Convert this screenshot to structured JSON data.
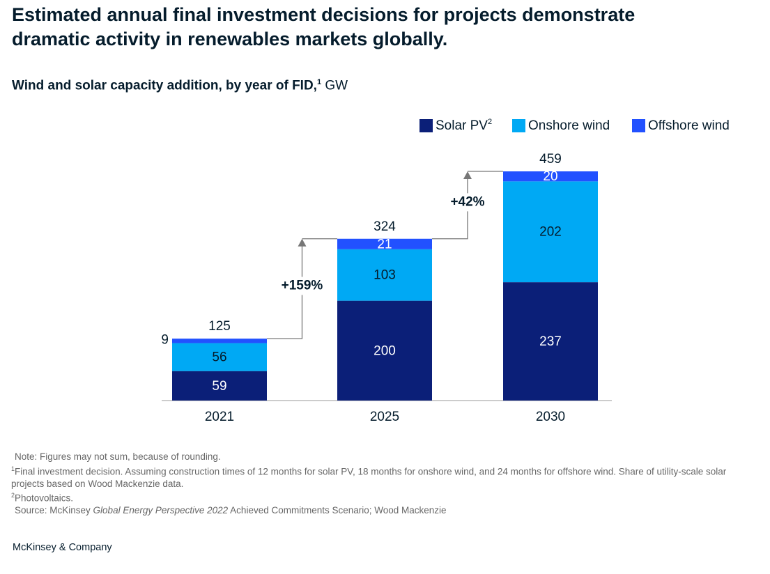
{
  "chart_data": {
    "type": "stacked_bar",
    "title": "Estimated annual final investment decisions for projects demonstrate dramatic activity in renewables markets globally.",
    "subtitle": "Wind and solar capacity addition, by year of FID,",
    "subtitle_footnote": "1",
    "unit": "GW",
    "categories": [
      "2021",
      "2025",
      "2030"
    ],
    "series": [
      {
        "name": "Solar PV",
        "footnote": "2",
        "color": "#0b1f78",
        "values": [
          59,
          200,
          237
        ]
      },
      {
        "name": "Onshore wind",
        "color": "#00a9f4",
        "values": [
          56,
          103,
          202
        ]
      },
      {
        "name": "Offshore wind",
        "color": "#2251ff",
        "values": [
          9,
          21,
          20
        ]
      }
    ],
    "totals": [
      125,
      324,
      459
    ],
    "growth_labels": [
      "+159%",
      "+42%"
    ],
    "notes": [
      {
        "text": "Note: Figures may not sum, because of rounding."
      },
      {
        "marker": "1",
        "text": "Final investment decision. Assuming construction times of 12 months for solar PV, 18 months for onshore wind, and 24 months for offshore wind. Share of utility-scale solar projects based on Wood Mackenzie data."
      },
      {
        "marker": "2",
        "text": "Photovoltaics."
      }
    ],
    "source": {
      "before": "Source: McKinsey ",
      "italic": "Global Energy Perspective 2022",
      "after": " Achieved Commitments Scenario; Wood Mackenzie"
    },
    "brand": "McKinsey & Company"
  }
}
